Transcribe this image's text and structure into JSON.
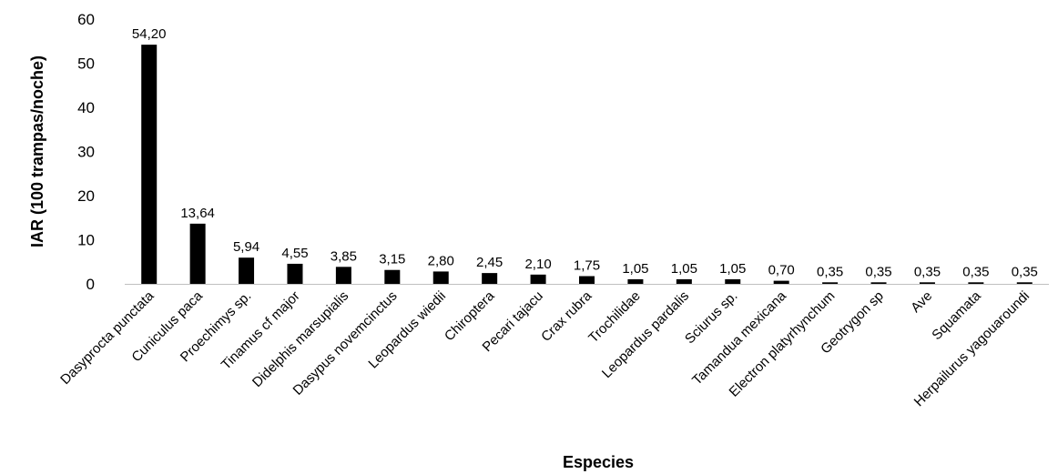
{
  "chart_data": {
    "type": "bar",
    "xlabel": "Especies",
    "ylabel": "IAR (100 trampas/noche)",
    "ylim": [
      0,
      60
    ],
    "yticks": [
      0,
      10,
      20,
      30,
      40,
      50,
      60
    ],
    "grid": false,
    "legend": "none",
    "bar_color": "#000000",
    "categories": [
      "Dasyprocta punctata",
      "Cuniculus paca",
      "Proechimys sp.",
      "Tinamus cf major",
      "Didelphis marsupialis",
      "Dasypus novemcinctus",
      "Leopardus wiedii",
      "Chiroptera",
      "Pecari tajacu",
      "Crax rubra",
      "Trochilidae",
      "Leopardus pardalis",
      "Sciurus sp.",
      "Tamandua mexicana",
      "Electron platyrhynchum",
      "Geotrygon sp",
      "Ave",
      "Squamata",
      "Herpailurus yagouaroundi"
    ],
    "values": [
      54.2,
      13.64,
      5.94,
      4.55,
      3.85,
      3.15,
      2.8,
      2.45,
      2.1,
      1.75,
      1.05,
      1.05,
      1.05,
      0.7,
      0.35,
      0.35,
      0.35,
      0.35,
      0.35
    ],
    "value_labels": [
      "54,20",
      "13,64",
      "5,94",
      "4,55",
      "3,85",
      "3,15",
      "2,80",
      "2,45",
      "2,10",
      "1,75",
      "1,05",
      "1,05",
      "1,05",
      "0,70",
      "0,35",
      "0,35",
      "0,35",
      "0,35",
      "0,35"
    ]
  }
}
